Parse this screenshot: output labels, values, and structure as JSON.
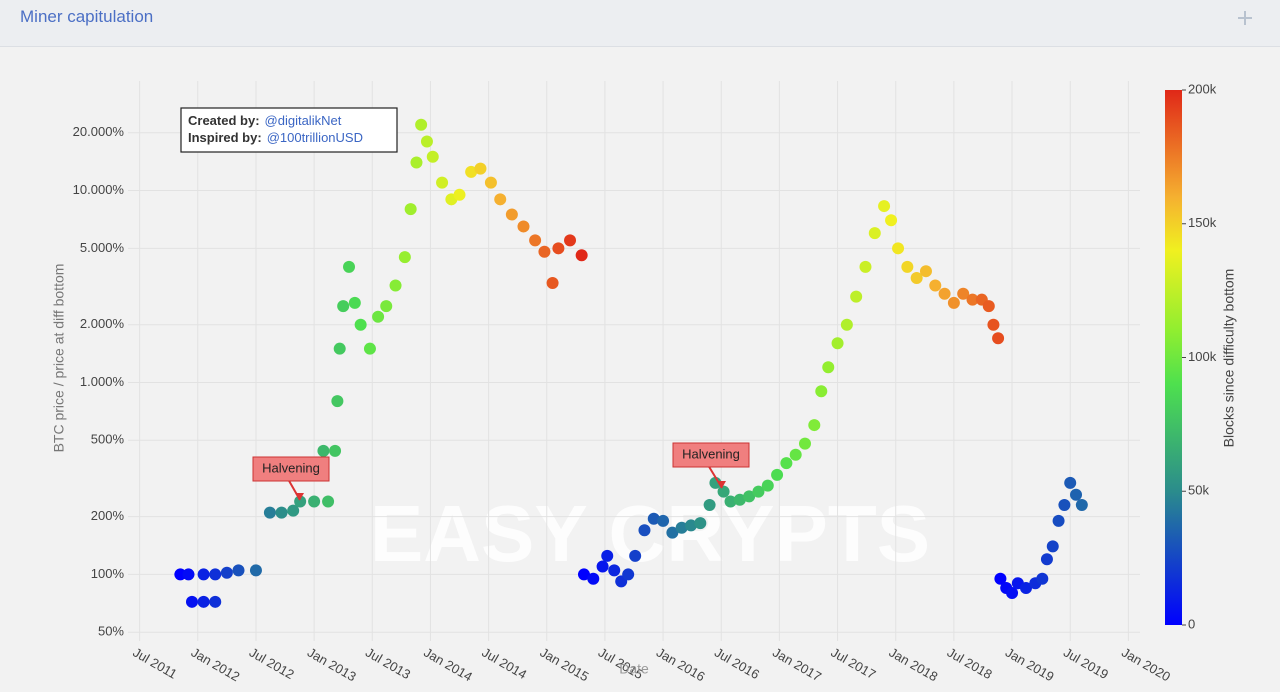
{
  "header": {
    "title": "Miner capitulation"
  },
  "chart_data": {
    "type": "scatter",
    "watermark": "EASY CRYPTS",
    "y_label": "BTC price / price at diff bottom",
    "x_label": "Date",
    "colorbar_title": "Blocks since difficulty bottom",
    "annotations": {
      "created_label": "Created by:",
      "created_value": "@digitalikNet",
      "inspired_label": "Inspired by:",
      "inspired_value": "@100trillionUSD",
      "halvening_1": "Halvening",
      "halvening_2": "Halvening"
    },
    "log_y": true,
    "grid": true,
    "xlim": [
      2011.4,
      2020.1
    ],
    "xticks": [
      {
        "value": 2011.5,
        "label": "Jul 2011"
      },
      {
        "value": 2012,
        "label": "Jan 2012"
      },
      {
        "value": 2012.5,
        "label": "Jul 2012"
      },
      {
        "value": 2013,
        "label": "Jan 2013"
      },
      {
        "value": 2013.5,
        "label": "Jul 2013"
      },
      {
        "value": 2014,
        "label": "Jan 2014"
      },
      {
        "value": 2014.5,
        "label": "Jul 2014"
      },
      {
        "value": 2015,
        "label": "Jan 2015"
      },
      {
        "value": 2015.5,
        "label": "Jul 2015"
      },
      {
        "value": 2016,
        "label": "Jan 2016"
      },
      {
        "value": 2016.5,
        "label": "Jul 2016"
      },
      {
        "value": 2017,
        "label": "Jan 2017"
      },
      {
        "value": 2017.5,
        "label": "Jul 2017"
      },
      {
        "value": 2018,
        "label": "Jan 2018"
      },
      {
        "value": 2018.5,
        "label": "Jul 2018"
      },
      {
        "value": 2019,
        "label": "Jan 2019"
      },
      {
        "value": 2019.5,
        "label": "Jul 2019"
      },
      {
        "value": 2020,
        "label": "Jan 2020"
      }
    ],
    "ylim": [
      45,
      33000
    ],
    "yticks": [
      {
        "value": 50,
        "label": "50%"
      },
      {
        "value": 100,
        "label": "100%"
      },
      {
        "value": 200,
        "label": "200%"
      },
      {
        "value": 500,
        "label": "500%"
      },
      {
        "value": 1000,
        "label": "1.000%"
      },
      {
        "value": 2000,
        "label": "2.000%"
      },
      {
        "value": 5000,
        "label": "5.000%"
      },
      {
        "value": 10000,
        "label": "10.000%"
      },
      {
        "value": 20000,
        "label": "20.000%"
      }
    ],
    "clim": [
      0,
      200000
    ],
    "cticks": [
      0,
      {
        "value": 50000,
        "label": "50k"
      },
      {
        "value": 100000,
        "label": "100k"
      },
      {
        "value": 150000,
        "label": "150k"
      },
      {
        "value": 200000,
        "label": "200k"
      }
    ],
    "colorscale": [
      [
        0,
        "#0000ff"
      ],
      [
        0.25,
        "#2b8c8c"
      ],
      [
        0.45,
        "#4ee04e"
      ],
      [
        0.55,
        "#90ee30"
      ],
      [
        0.7,
        "#f0f020"
      ],
      [
        0.8,
        "#f5b030"
      ],
      [
        1,
        "#e02818"
      ]
    ],
    "x": [
      2011.85,
      2011.92,
      2011.95,
      2012.05,
      2012.15,
      2012.05,
      2012.15,
      2012.25,
      2012.35,
      2012.5,
      2012.62,
      2012.72,
      2012.82,
      2012.88,
      2013.0,
      2013.12,
      2013.08,
      2013.18,
      2013.2,
      2013.22,
      2013.25,
      2013.3,
      2013.35,
      2013.4,
      2013.48,
      2013.55,
      2013.62,
      2013.7,
      2013.78,
      2013.83,
      2013.88,
      2013.92,
      2013.97,
      2014.02,
      2014.1,
      2014.18,
      2014.25,
      2014.35,
      2014.43,
      2014.52,
      2014.6,
      2014.7,
      2014.8,
      2014.9,
      2014.98,
      2015.05,
      2015.1,
      2015.2,
      2015.3,
      2015.32,
      2015.4,
      2015.48,
      2015.52,
      2015.58,
      2015.64,
      2015.7,
      2015.76,
      2015.84,
      2015.92,
      2016.0,
      2016.08,
      2016.16,
      2016.24,
      2016.32,
      2016.4,
      2016.45,
      2016.52,
      2016.58,
      2016.66,
      2016.74,
      2016.82,
      2016.9,
      2016.98,
      2017.06,
      2017.14,
      2017.22,
      2017.3,
      2017.36,
      2017.42,
      2017.5,
      2017.58,
      2017.66,
      2017.74,
      2017.82,
      2017.9,
      2017.96,
      2018.02,
      2018.1,
      2018.18,
      2018.26,
      2018.34,
      2018.42,
      2018.5,
      2018.58,
      2018.66,
      2018.74,
      2018.8,
      2018.84,
      2018.88,
      2018.9,
      2018.95,
      2019.0,
      2019.05,
      2019.12,
      2019.2,
      2019.26,
      2019.3,
      2019.35,
      2019.4,
      2019.45,
      2019.5,
      2019.55,
      2019.6
    ],
    "values": [
      100,
      100,
      72,
      72,
      72,
      100,
      100,
      102,
      105,
      105,
      210,
      210,
      215,
      240,
      240,
      240,
      440,
      440,
      800,
      1500,
      2500,
      4000,
      2600,
      2000,
      1500,
      2200,
      2500,
      3200,
      4500,
      8000,
      14000,
      22000,
      18000,
      15000,
      11000,
      9000,
      9500,
      12500,
      13000,
      11000,
      9000,
      7500,
      6500,
      5500,
      4800,
      3300,
      5000,
      5500,
      4600,
      100,
      95,
      110,
      125,
      105,
      92,
      100,
      125,
      170,
      195,
      190,
      165,
      175,
      180,
      185,
      230,
      300,
      270,
      240,
      245,
      255,
      270,
      290,
      330,
      380,
      420,
      480,
      600,
      900,
      1200,
      1600,
      2000,
      2800,
      4000,
      6000,
      8300,
      7000,
      5000,
      4000,
      3500,
      3800,
      3200,
      2900,
      2600,
      2900,
      2700,
      2700,
      2500,
      2000,
      1700,
      95,
      85,
      80,
      90,
      85,
      90,
      95,
      120,
      140,
      190,
      230,
      300,
      260,
      230
    ],
    "color_values": [
      0,
      4000,
      6000,
      12000,
      17000,
      12000,
      17000,
      23000,
      29000,
      38000,
      45000,
      51000,
      56000,
      60000,
      67000,
      74000,
      71000,
      77000,
      78000,
      79000,
      81000,
      84000,
      87000,
      90000,
      95000,
      99000,
      103000,
      107000,
      112000,
      115000,
      118000,
      120000,
      123000,
      126000,
      130000,
      135000,
      139000,
      145000,
      150000,
      155000,
      160000,
      166000,
      171000,
      177000,
      182000,
      186000,
      189000,
      195000,
      200000,
      0,
      4000,
      8000,
      11000,
      14000,
      17000,
      20000,
      23000,
      28000,
      32000,
      36000,
      40000,
      45000,
      49000,
      53000,
      57000,
      60000,
      63000,
      67000,
      71000,
      75000,
      80000,
      84000,
      88000,
      92000,
      97000,
      101000,
      105000,
      108000,
      111000,
      116000,
      120000,
      124000,
      128000,
      133000,
      137000,
      140000,
      143000,
      148000,
      152000,
      156000,
      160000,
      164000,
      169000,
      173000,
      177000,
      182000,
      185000,
      187000,
      189000,
      0,
      3000,
      5000,
      8000,
      12000,
      16000,
      19000,
      21000,
      24000,
      27000,
      29000,
      32000,
      35000,
      37000
    ]
  }
}
